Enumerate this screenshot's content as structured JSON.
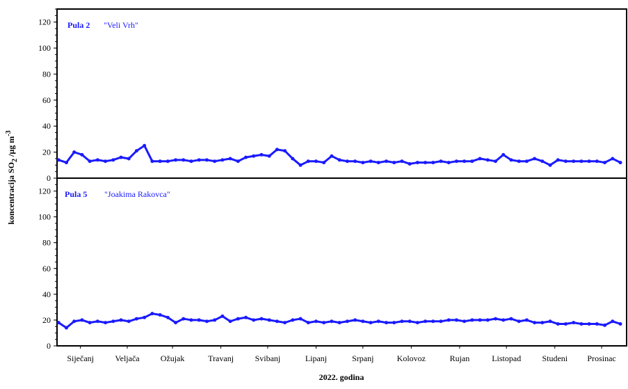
{
  "chart_data": [
    {
      "type": "line",
      "title": "Pula 2",
      "subtitle": "\"Veli Vrh\"",
      "x": [
        1,
        6,
        11,
        16,
        21,
        26,
        31,
        36,
        41,
        46,
        51,
        56,
        61,
        66,
        71,
        76,
        81,
        86,
        91,
        96,
        101,
        106,
        111,
        116,
        121,
        126,
        131,
        136,
        141,
        146,
        151,
        156,
        161,
        166,
        171,
        176,
        181,
        186,
        191,
        196,
        201,
        206,
        211,
        216,
        221,
        226,
        231,
        236,
        241,
        246,
        251,
        256,
        261,
        266,
        271,
        276,
        281,
        286,
        291,
        296,
        301,
        306,
        311,
        316,
        321,
        326,
        331,
        336,
        341,
        346,
        351,
        356,
        361
      ],
      "series": [
        {
          "color": "#1a1aff",
          "values": [
            14,
            12,
            20,
            18,
            13,
            14,
            13,
            14,
            16,
            15,
            21,
            25,
            13,
            13,
            13,
            14,
            14,
            13,
            14,
            14,
            13,
            14,
            15,
            13,
            16,
            17,
            18,
            17,
            22,
            21,
            15,
            10,
            13,
            13,
            12,
            17,
            14,
            13,
            13,
            12,
            13,
            12,
            13,
            12,
            13,
            11,
            12,
            12,
            12,
            13,
            12,
            13,
            13,
            13,
            15,
            14,
            13,
            18,
            14,
            13,
            13,
            15,
            13,
            10,
            14,
            13,
            13,
            13,
            13,
            13,
            12,
            15,
            12
          ]
        }
      ],
      "xlim": [
        0,
        365
      ],
      "ylim": [
        0,
        130
      ],
      "yticks": [
        0,
        20,
        40,
        60,
        80,
        100,
        120
      ]
    },
    {
      "type": "line",
      "title": "Pula 5",
      "subtitle": "\"Joakima Rakovca\"",
      "x": [
        1,
        6,
        11,
        16,
        21,
        26,
        31,
        36,
        41,
        46,
        51,
        56,
        61,
        66,
        71,
        76,
        81,
        86,
        91,
        96,
        101,
        106,
        111,
        116,
        121,
        126,
        131,
        136,
        141,
        146,
        151,
        156,
        161,
        166,
        171,
        176,
        181,
        186,
        191,
        196,
        201,
        206,
        211,
        216,
        221,
        226,
        231,
        236,
        241,
        246,
        251,
        256,
        261,
        266,
        271,
        276,
        281,
        286,
        291,
        296,
        301,
        306,
        311,
        316,
        321,
        326,
        331,
        336,
        341,
        346,
        351,
        356,
        361
      ],
      "series": [
        {
          "color": "#1a1aff",
          "values": [
            18,
            14,
            19,
            20,
            18,
            19,
            18,
            19,
            20,
            19,
            21,
            22,
            25,
            24,
            22,
            18,
            21,
            20,
            20,
            19,
            20,
            23,
            19,
            21,
            22,
            20,
            21,
            20,
            19,
            18,
            20,
            21,
            18,
            19,
            18,
            19,
            18,
            19,
            20,
            19,
            18,
            19,
            18,
            18,
            19,
            19,
            18,
            19,
            19,
            19,
            20,
            20,
            19,
            20,
            20,
            20,
            21,
            20,
            21,
            19,
            20,
            18,
            18,
            19,
            17,
            17,
            18,
            17,
            17,
            17,
            16,
            19,
            17
          ]
        }
      ],
      "xlim": [
        0,
        365
      ],
      "xticks": [
        {
          "value": 15,
          "label": "Siječanj"
        },
        {
          "value": 45,
          "label": "Veljača"
        },
        {
          "value": 74,
          "label": "Ožujak"
        },
        {
          "value": 105,
          "label": "Travanj"
        },
        {
          "value": 135,
          "label": "Svibanj"
        },
        {
          "value": 166,
          "label": "Lipanj"
        },
        {
          "value": 196,
          "label": "Srpanj"
        },
        {
          "value": 227,
          "label": "Kolovoz"
        },
        {
          "value": 258,
          "label": "Rujan"
        },
        {
          "value": 288,
          "label": "Listopad"
        },
        {
          "value": 319,
          "label": "Studeni"
        },
        {
          "value": 349,
          "label": "Prosinac"
        }
      ],
      "ylim": [
        0,
        130
      ],
      "yticks": [
        0,
        20,
        40,
        60,
        80,
        100,
        120
      ]
    }
  ],
  "y_label": {
    "text": "koncentracija SO",
    "sub": "2",
    "unit": " /µg m",
    "sup": "-3"
  },
  "x_label": "2022. godina"
}
